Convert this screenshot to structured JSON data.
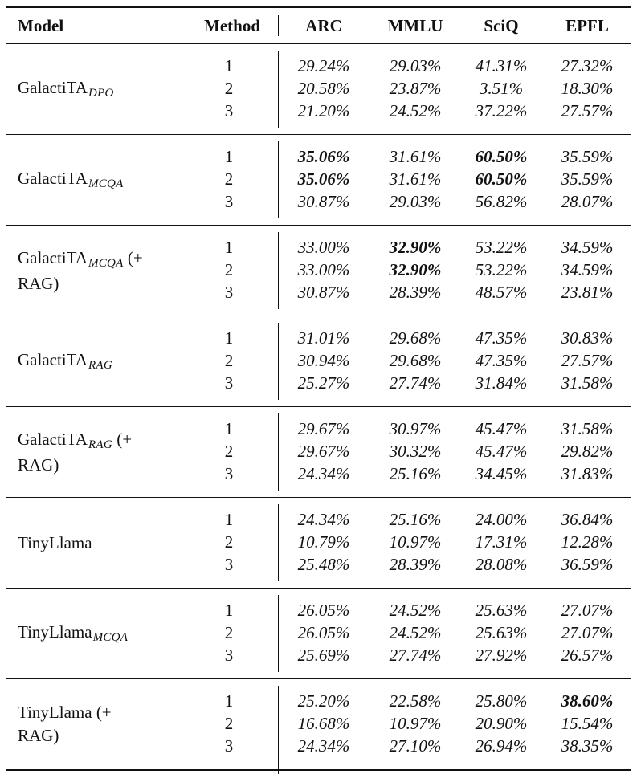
{
  "header": {
    "model": "Model",
    "method": "Method",
    "arc": "ARC",
    "mmlu": "MMLU",
    "sciq": "SciQ",
    "epfl": "EPFL"
  },
  "groups": [
    {
      "model_base": "GalactiTA",
      "model_sub": "DPO",
      "model_tail": "",
      "model_line2": "",
      "rows": [
        {
          "method": "1",
          "arc": "29.24%",
          "mmlu": "29.03%",
          "sciq": "41.31%",
          "epfl": "27.32%"
        },
        {
          "method": "2",
          "arc": "20.58%",
          "mmlu": "23.87%",
          "sciq": "3.51%",
          "epfl": "18.30%"
        },
        {
          "method": "3",
          "arc": "21.20%",
          "mmlu": "24.52%",
          "sciq": "37.22%",
          "epfl": "27.57%"
        }
      ]
    },
    {
      "model_base": "GalactiTA",
      "model_sub": "MCQA",
      "model_tail": "",
      "model_line2": "",
      "rows": [
        {
          "method": "1",
          "arc": "35.06%",
          "mmlu": "31.61%",
          "sciq": "60.50%",
          "epfl": "35.59%",
          "bold": [
            "arc",
            "sciq"
          ]
        },
        {
          "method": "2",
          "arc": "35.06%",
          "mmlu": "31.61%",
          "sciq": "60.50%",
          "epfl": "35.59%",
          "bold": [
            "arc",
            "sciq"
          ]
        },
        {
          "method": "3",
          "arc": "30.87%",
          "mmlu": "29.03%",
          "sciq": "56.82%",
          "epfl": "28.07%"
        }
      ]
    },
    {
      "model_base": "GalactiTA",
      "model_sub": "MCQA",
      "model_tail": " (+",
      "model_line2": "RAG)",
      "rows": [
        {
          "method": "1",
          "arc": "33.00%",
          "mmlu": "32.90%",
          "sciq": "53.22%",
          "epfl": "34.59%",
          "bold": [
            "mmlu"
          ]
        },
        {
          "method": "2",
          "arc": "33.00%",
          "mmlu": "32.90%",
          "sciq": "53.22%",
          "epfl": "34.59%",
          "bold": [
            "mmlu"
          ]
        },
        {
          "method": "3",
          "arc": "30.87%",
          "mmlu": "28.39%",
          "sciq": "48.57%",
          "epfl": "23.81%"
        }
      ]
    },
    {
      "model_base": "GalactiTA",
      "model_sub": "RAG",
      "model_tail": "",
      "model_line2": "",
      "rows": [
        {
          "method": "1",
          "arc": "31.01%",
          "mmlu": "29.68%",
          "sciq": "47.35%",
          "epfl": "30.83%"
        },
        {
          "method": "2",
          "arc": "30.94%",
          "mmlu": "29.68%",
          "sciq": "47.35%",
          "epfl": "27.57%"
        },
        {
          "method": "3",
          "arc": "25.27%",
          "mmlu": "27.74%",
          "sciq": "31.84%",
          "epfl": "31.58%"
        }
      ]
    },
    {
      "model_base": "GalactiTA",
      "model_sub": "RAG",
      "model_tail": " (+",
      "model_line2": "RAG)",
      "rows": [
        {
          "method": "1",
          "arc": "29.67%",
          "mmlu": "30.97%",
          "sciq": "45.47%",
          "epfl": "31.58%"
        },
        {
          "method": "2",
          "arc": "29.67%",
          "mmlu": "30.32%",
          "sciq": "45.47%",
          "epfl": "29.82%"
        },
        {
          "method": "3",
          "arc": "24.34%",
          "mmlu": "25.16%",
          "sciq": "34.45%",
          "epfl": "31.83%"
        }
      ]
    },
    {
      "model_base": "TinyLlama",
      "model_sub": "",
      "model_tail": "",
      "model_line2": "",
      "rows": [
        {
          "method": "1",
          "arc": "24.34%",
          "mmlu": "25.16%",
          "sciq": "24.00%",
          "epfl": "36.84%"
        },
        {
          "method": "2",
          "arc": "10.79%",
          "mmlu": "10.97%",
          "sciq": "17.31%",
          "epfl": "12.28%"
        },
        {
          "method": "3",
          "arc": "25.48%",
          "mmlu": "28.39%",
          "sciq": "28.08%",
          "epfl": "36.59%"
        }
      ]
    },
    {
      "model_base": "TinyLlama",
      "model_sub": "MCQA",
      "model_tail": "",
      "model_line2": "",
      "rows": [
        {
          "method": "1",
          "arc": "26.05%",
          "mmlu": "24.52%",
          "sciq": "25.63%",
          "epfl": "27.07%"
        },
        {
          "method": "2",
          "arc": "26.05%",
          "mmlu": "24.52%",
          "sciq": "25.63%",
          "epfl": "27.07%"
        },
        {
          "method": "3",
          "arc": "25.69%",
          "mmlu": "27.74%",
          "sciq": "27.92%",
          "epfl": "26.57%"
        }
      ]
    },
    {
      "model_base": "TinyLlama",
      "model_sub": "",
      "model_tail": " (+",
      "model_line2": "RAG)",
      "rows": [
        {
          "method": "1",
          "arc": "25.20%",
          "mmlu": "22.58%",
          "sciq": "25.80%",
          "epfl": "38.60%",
          "bold": [
            "epfl"
          ]
        },
        {
          "method": "2",
          "arc": "16.68%",
          "mmlu": "10.97%",
          "sciq": "20.90%",
          "epfl": "15.54%"
        },
        {
          "method": "3",
          "arc": "24.34%",
          "mmlu": "27.10%",
          "sciq": "26.94%",
          "epfl": "38.35%"
        }
      ]
    }
  ]
}
